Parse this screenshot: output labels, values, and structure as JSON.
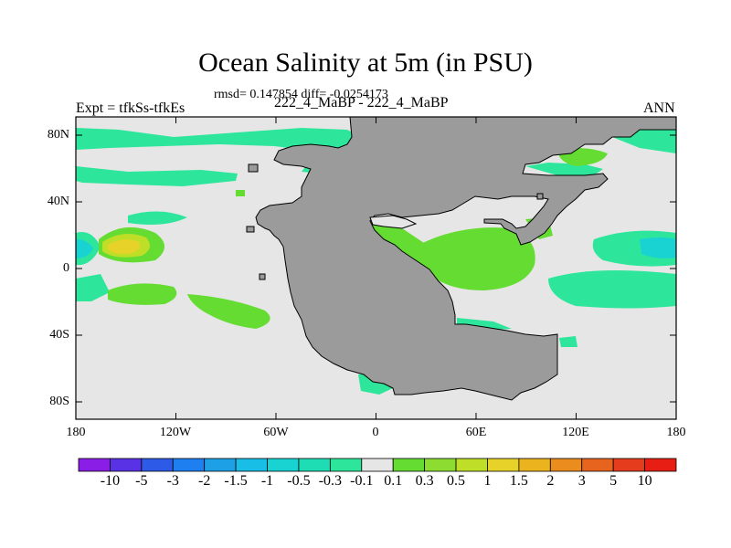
{
  "title": "Ocean Salinity at 5m (in PSU)",
  "stats_line": "rmsd= 0.147854 diff= -0.0254173",
  "left_label": "Expt = tfkSs-tfkEs",
  "center_label": "222_4_MaBP - 222_4_MaBP",
  "right_label": "ANN",
  "lat_ticks": [
    "80N",
    "40N",
    "0",
    "40S",
    "80S"
  ],
  "lon_ticks": [
    "180",
    "120W",
    "60W",
    "0",
    "60E",
    "120E",
    "180"
  ],
  "colorbar": {
    "labels": [
      "-10",
      "-5",
      "-3",
      "-2",
      "-1.5",
      "-1",
      "-0.5",
      "-0.3",
      "-0.1",
      "0.1",
      "0.3",
      "0.5",
      "1",
      "1.5",
      "2",
      "3",
      "5",
      "10"
    ],
    "colors": [
      "#8a1ee6",
      "#5a32e6",
      "#2d5ae6",
      "#1e7ff0",
      "#1ea0e6",
      "#19bee6",
      "#19d2d2",
      "#1edcb4",
      "#2de69b",
      "#e6e6e6",
      "#64dc32",
      "#8cdc32",
      "#bede28",
      "#e6d228",
      "#ebb41e",
      "#eb8c1e",
      "#e6641e",
      "#e63c1e",
      "#e61e14"
    ]
  },
  "land_color": "#9b9b9b",
  "ocean_background": "#e6e6e6"
}
